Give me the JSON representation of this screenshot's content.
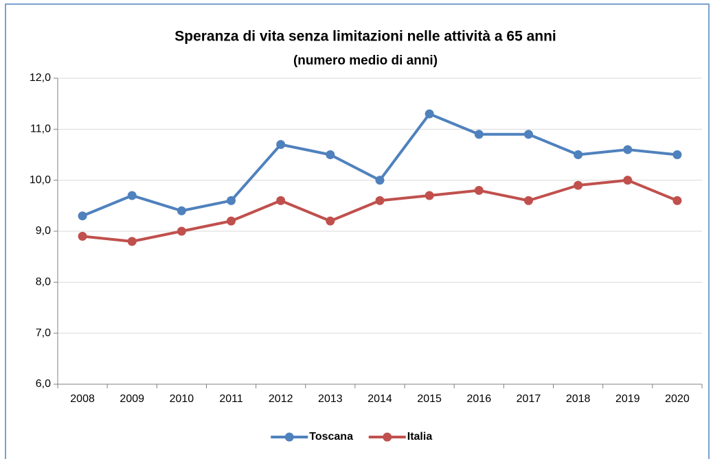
{
  "chart_data": {
    "type": "line",
    "title": "Speranza di vita senza limitazioni nelle attività a 65 anni",
    "subtitle": "(numero medio di anni)",
    "categories": [
      "2008",
      "2009",
      "2010",
      "2011",
      "2012",
      "2013",
      "2014",
      "2015",
      "2016",
      "2017",
      "2018",
      "2019",
      "2020"
    ],
    "series": [
      {
        "name": "Toscana",
        "color": "#4f81bd",
        "values": [
          9.3,
          9.7,
          9.4,
          9.6,
          10.7,
          10.5,
          10.0,
          11.3,
          10.9,
          10.9,
          10.5,
          10.6,
          10.5
        ]
      },
      {
        "name": "Italia",
        "color": "#c0504d",
        "values": [
          8.9,
          8.8,
          9.0,
          9.2,
          9.6,
          9.2,
          9.6,
          9.7,
          9.8,
          9.6,
          9.9,
          10.0,
          9.6
        ]
      }
    ],
    "ylim": [
      6,
      12
    ],
    "yticks": [
      {
        "value": 6,
        "label": "6,0"
      },
      {
        "value": 7,
        "label": "7,0"
      },
      {
        "value": 8,
        "label": "8,0"
      },
      {
        "value": 9,
        "label": "9,0"
      },
      {
        "value": 10,
        "label": "10,0"
      },
      {
        "value": 11,
        "label": "11,0"
      },
      {
        "value": 12,
        "label": "12,0"
      }
    ],
    "grid": true,
    "legend": "bottom"
  }
}
